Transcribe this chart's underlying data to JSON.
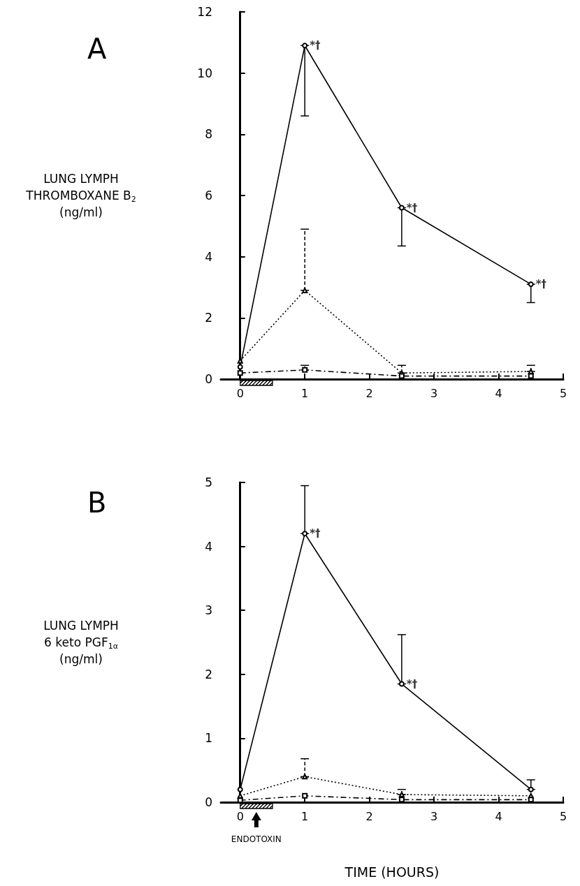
{
  "chart_data": [
    {
      "type": "line",
      "title": "A",
      "ylabel": "LUNG LYMPH\nTHROMBOXANE B$_{2}$\n(ng/ml)",
      "x": [
        0,
        1,
        2.5,
        4.5
      ],
      "xlim": [
        -0.3,
        5
      ],
      "xticks": [
        0,
        1,
        2,
        3,
        4,
        5
      ],
      "ylim": [
        0,
        12
      ],
      "yticks": [
        0,
        2,
        4,
        6,
        8,
        10,
        12
      ],
      "grid": false,
      "series": [
        {
          "color": "#000000",
          "marker": "circle",
          "line_style": "solid",
          "values": [
            0.4,
            10.9,
            5.6,
            3.1
          ],
          "errors": [
            null,
            [
              8.6,
              10.9
            ],
            [
              4.35,
              5.6
            ],
            [
              2.5,
              3.1
            ]
          ]
        },
        {
          "color": "#000000",
          "marker": "triangle",
          "line_style": "dotted",
          "values": [
            0.6,
            2.9,
            0.2,
            0.25
          ],
          "errors": [
            null,
            [
              2.9,
              4.9
            ],
            [
              0.2,
              0.45
            ],
            [
              0.25,
              0.45
            ]
          ]
        },
        {
          "color": "#000000",
          "marker": "square",
          "line_style": "dashed",
          "values": [
            0.2,
            0.3,
            0.1,
            0.1
          ],
          "errors": [
            null,
            [
              0.3,
              0.45
            ],
            null,
            null
          ]
        }
      ],
      "annotations": [
        {
          "text": "*†",
          "x": 1,
          "y": 10.9
        },
        {
          "text": "*†",
          "x": 2.5,
          "y": 5.6
        },
        {
          "text": "*†",
          "x": 4.5,
          "y": 3.1
        }
      ]
    },
    {
      "type": "line",
      "title": "B",
      "ylabel": "LUNG LYMPH\n6 keto PGF$_{1α}$\n(ng/ml)",
      "xlabel": "TIME (HOURS)",
      "x": [
        0,
        1,
        2.5,
        4.5
      ],
      "xlim": [
        -0.3,
        5
      ],
      "xticks": [
        0,
        1,
        2,
        3,
        4,
        5
      ],
      "ylim": [
        0,
        5
      ],
      "yticks": [
        0,
        1,
        2,
        3,
        4,
        5
      ],
      "grid": false,
      "series": [
        {
          "color": "#000000",
          "marker": "circle",
          "line_style": "solid",
          "values": [
            0.2,
            4.2,
            1.85,
            0.2
          ],
          "errors": [
            null,
            [
              4.2,
              4.95
            ],
            [
              1.85,
              2.62
            ],
            [
              0.2,
              0.35
            ]
          ]
        },
        {
          "color": "#000000",
          "marker": "triangle",
          "line_style": "dotted",
          "values": [
            0.1,
            0.4,
            0.12,
            0.1
          ],
          "errors": [
            null,
            [
              0.4,
              0.68
            ],
            [
              0.12,
              0.2
            ],
            null
          ]
        },
        {
          "color": "#000000",
          "marker": "square",
          "line_style": "dashed",
          "values": [
            0.03,
            0.1,
            0.04,
            0.04
          ]
        }
      ],
      "annotations": [
        {
          "text": "*†",
          "x": 1,
          "y": 4.2
        },
        {
          "text": "*†",
          "x": 2.5,
          "y": 1.85
        },
        "ENDOTOXIN"
      ]
    }
  ]
}
